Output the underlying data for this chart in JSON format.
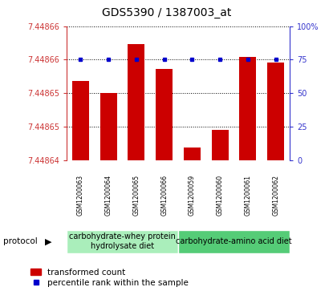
{
  "title": "GDS5390 / 1387003_at",
  "samples": [
    "GSM1200063",
    "GSM1200064",
    "GSM1200065",
    "GSM1200066",
    "GSM1200059",
    "GSM1200060",
    "GSM1200061",
    "GSM1200062"
  ],
  "red_values": [
    7.448653,
    7.448651,
    7.448659,
    7.448655,
    7.448642,
    7.448645,
    7.448657,
    7.448656
  ],
  "blue_values": [
    75,
    75,
    75,
    75,
    75,
    75,
    75,
    75
  ],
  "y_min": 7.44864,
  "y_max": 7.448662,
  "percentile_ticks": [
    0,
    25,
    50,
    75,
    100
  ],
  "protocol_groups": [
    {
      "label": "carbohydrate-whey protein\nhydrolysate diet",
      "indices": [
        0,
        1,
        2,
        3
      ],
      "color": "#aaeebb"
    },
    {
      "label": "carbohydrate-amino acid diet",
      "indices": [
        4,
        5,
        6,
        7
      ],
      "color": "#55cc77"
    }
  ],
  "bar_color": "#cc0000",
  "dot_color": "#0000cc",
  "axis_color_left": "#cc3333",
  "axis_color_right": "#3333cc",
  "sample_box_color": "#cccccc",
  "grid_color": "#000000",
  "title_fontsize": 10,
  "tick_fontsize": 7,
  "label_fontsize": 6,
  "legend_fontsize": 7.5,
  "protocol_fontsize": 7
}
